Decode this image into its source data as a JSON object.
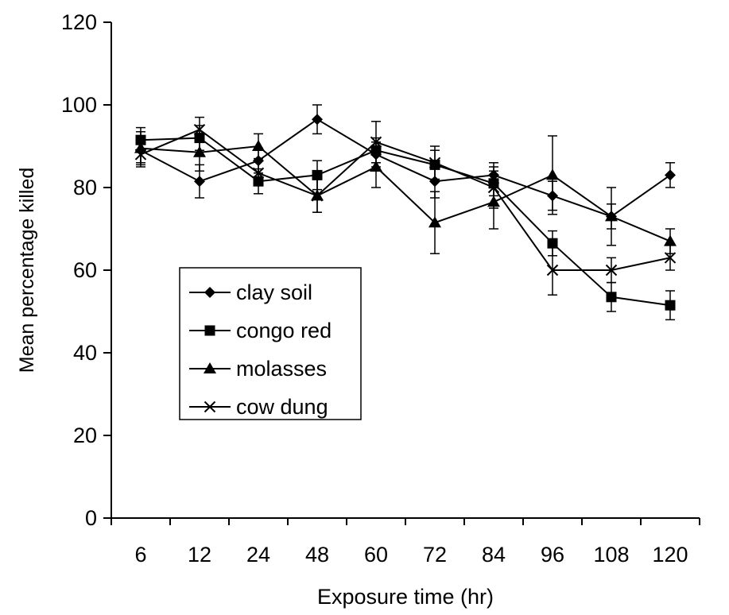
{
  "chart_data": {
    "type": "line",
    "title": "",
    "xlabel": "Exposure time (hr)",
    "ylabel": "Mean percentage killed",
    "categories": [
      "6",
      "12",
      "24",
      "48",
      "60",
      "72",
      "84",
      "96",
      "108",
      "120"
    ],
    "ylim": [
      0,
      120
    ],
    "yticks": [
      0,
      20,
      40,
      60,
      80,
      100,
      120
    ],
    "grid": false,
    "legend_position": "left-middle",
    "series": [
      {
        "name": "clay soil",
        "marker": "diamond",
        "values": [
          89,
          81.5,
          86.5,
          96.5,
          88,
          81.5,
          83,
          78,
          73,
          83
        ],
        "errors": [
          3,
          4,
          3,
          3.5,
          3,
          4,
          3,
          3.5,
          3,
          3
        ]
      },
      {
        "name": "congo red",
        "marker": "square",
        "values": [
          91.5,
          92,
          81.5,
          83,
          89,
          85.5,
          81,
          66.5,
          53.5,
          51.5
        ],
        "errors": [
          3,
          3,
          3,
          3.5,
          3,
          3.5,
          3,
          3,
          3.5,
          3.5
        ]
      },
      {
        "name": "molasses",
        "marker": "triangle",
        "values": [
          89.5,
          88.5,
          90,
          78,
          85,
          71.5,
          76.5,
          83,
          73,
          67
        ],
        "errors": [
          4,
          4.5,
          3,
          4,
          5,
          7.5,
          6.5,
          9.5,
          7,
          3
        ]
      },
      {
        "name": "cow dung",
        "marker": "x",
        "values": [
          88,
          94,
          83.5,
          78,
          91,
          86,
          80,
          60,
          60,
          63
        ],
        "errors": [
          3,
          3,
          3,
          4,
          5,
          4,
          5,
          6,
          3,
          3
        ]
      }
    ]
  }
}
